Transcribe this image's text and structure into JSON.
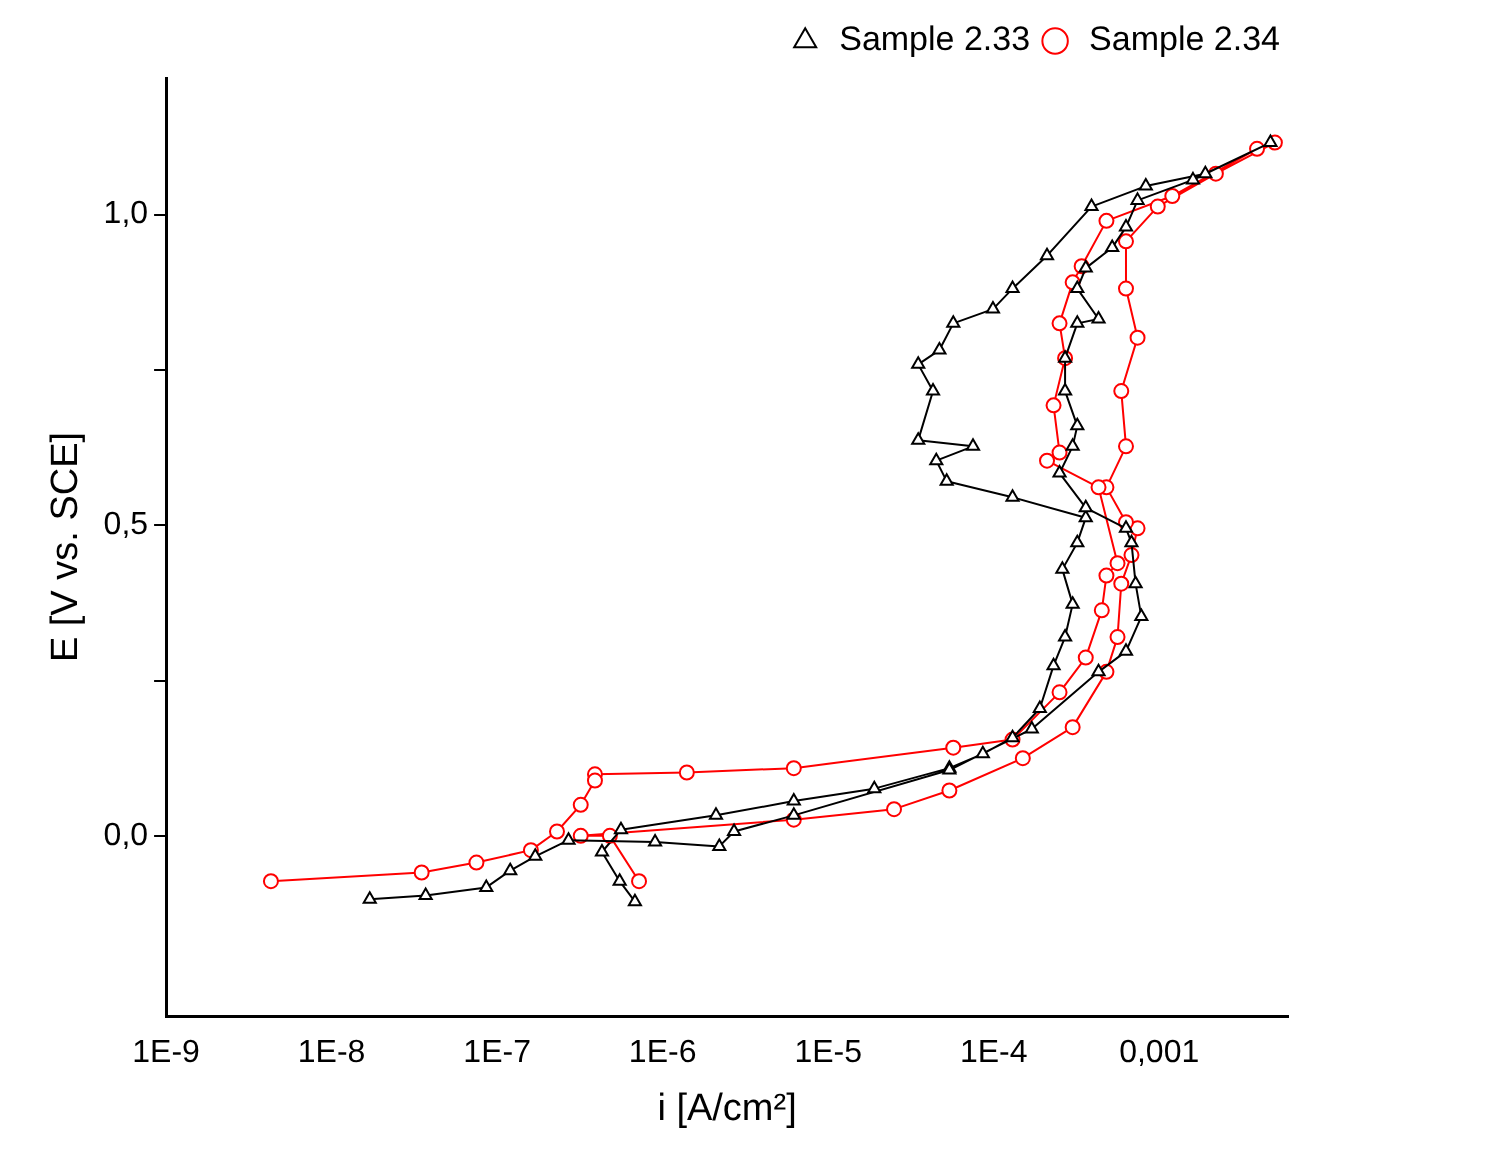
{
  "chart_data": {
    "type": "line",
    "xlabel": "i [A/cm²]",
    "ylabel": "E [V vs. SCE]",
    "log": "x",
    "grid": false,
    "legend": "top right",
    "line_style": "solid",
    "xlim": [
      1e-09,
      0.006
    ],
    "xticks": [
      {
        "value": 1e-09,
        "label": "1E-9"
      },
      {
        "value": 1e-08,
        "label": "1E-8"
      },
      {
        "value": 1e-07,
        "label": "1E-7"
      },
      {
        "value": 1e-06,
        "label": "1E-6"
      },
      {
        "value": 1e-05,
        "label": "1E-5"
      },
      {
        "value": 0.0001,
        "label": "1E-4"
      },
      {
        "value": 0.001,
        "label": "0,001"
      }
    ],
    "ylim": [
      -0.29,
      1.22
    ],
    "yticks": [
      {
        "value": 0,
        "label": "0,0"
      },
      {
        "value": 0.25,
        "label": null
      },
      {
        "value": 0.5,
        "label": "0,5"
      },
      {
        "value": 0.75,
        "label": null
      },
      {
        "value": 1,
        "label": "1,0"
      }
    ],
    "series": [
      {
        "name": "Sample 2.33",
        "color": "#000000",
        "marker": "triangle",
        "x": [
          6.8e-07,
          5.5e-07,
          4.3e-07,
          5.6e-07,
          2.1e-06,
          6.2e-06,
          1.9e-05,
          5.4e-05,
          8.6e-05,
          0.00013,
          0.00019,
          0.00023,
          0.00027,
          0.0003,
          0.00026,
          0.00032,
          0.00036,
          0.00013,
          5.2e-05,
          4.5e-05,
          7.5e-05,
          3.5e-05,
          4.3e-05,
          3.5e-05,
          4.7e-05,
          5.7e-05,
          9.9e-05,
          0.00013,
          0.00021,
          0.00039,
          0.00083,
          0.0019,
          0.0047,
          0.0016,
          0.00074,
          0.00063,
          0.00052,
          0.00036,
          0.00032,
          0.00043,
          0.00032,
          0.00027,
          0.00027,
          0.00032,
          0.0003,
          0.00025,
          0.00036,
          0.00063,
          0.00068,
          0.00072,
          0.00078,
          0.00063,
          0.00043,
          0.00017,
          5.4e-05,
          6.2e-06,
          2.7e-06,
          2.2e-06,
          9e-07,
          2.7e-07,
          1.7e-07,
          1.2e-07,
          8.6e-08,
          3.7e-08,
          1.7e-08
        ],
        "values": [
          -0.106,
          -0.073,
          -0.026,
          0.01,
          0.033,
          0.056,
          0.076,
          0.109,
          0.132,
          0.158,
          0.205,
          0.274,
          0.32,
          0.373,
          0.429,
          0.472,
          0.512,
          0.545,
          0.571,
          0.604,
          0.627,
          0.637,
          0.716,
          0.759,
          0.782,
          0.825,
          0.848,
          0.881,
          0.934,
          1.013,
          1.046,
          1.066,
          1.116,
          1.056,
          1.023,
          0.98,
          0.947,
          0.914,
          0.881,
          0.832,
          0.825,
          0.769,
          0.716,
          0.66,
          0.627,
          0.584,
          0.528,
          0.495,
          0.472,
          0.406,
          0.353,
          0.297,
          0.264,
          0.172,
          0.106,
          0.033,
          0.007,
          -0.017,
          -0.01,
          -0.007,
          -0.033,
          -0.056,
          -0.083,
          -0.096,
          -0.102
        ]
      },
      {
        "name": "Sample 2.34",
        "color": "#ff0000",
        "marker": "circle",
        "x": [
          7.2e-07,
          4.8e-07,
          3.2e-07,
          6.2e-06,
          2.5e-05,
          5.4e-05,
          0.00015,
          0.0003,
          0.00048,
          0.00056,
          0.00059,
          0.00068,
          0.00074,
          0.00063,
          0.00048,
          0.00063,
          0.00059,
          0.00074,
          0.00063,
          0.00063,
          0.00098,
          0.0022,
          0.005,
          0.0039,
          0.0012,
          0.00048,
          0.00034,
          0.0003,
          0.00025,
          0.00027,
          0.00023,
          0.00025,
          0.00021,
          0.00043,
          0.00056,
          0.00048,
          0.00045,
          0.00036,
          0.00025,
          0.00013,
          5.7e-05,
          6.2e-06,
          1.4e-06,
          3.9e-07,
          3.9e-07,
          3.2e-07,
          2.3e-07,
          1.6e-07,
          7.5e-08,
          3.5e-08,
          4.3e-09
        ],
        "values": [
          -0.073,
          0.0,
          0.0,
          0.026,
          0.043,
          0.073,
          0.125,
          0.175,
          0.264,
          0.32,
          0.406,
          0.452,
          0.495,
          0.505,
          0.561,
          0.627,
          0.716,
          0.802,
          0.881,
          0.957,
          1.013,
          1.066,
          1.116,
          1.106,
          1.03,
          0.99,
          0.917,
          0.891,
          0.825,
          0.769,
          0.693,
          0.617,
          0.604,
          0.561,
          0.439,
          0.419,
          0.363,
          0.287,
          0.231,
          0.155,
          0.142,
          0.109,
          0.102,
          0.099,
          0.089,
          0.05,
          0.007,
          -0.023,
          -0.043,
          -0.059,
          -0.073
        ]
      }
    ]
  }
}
